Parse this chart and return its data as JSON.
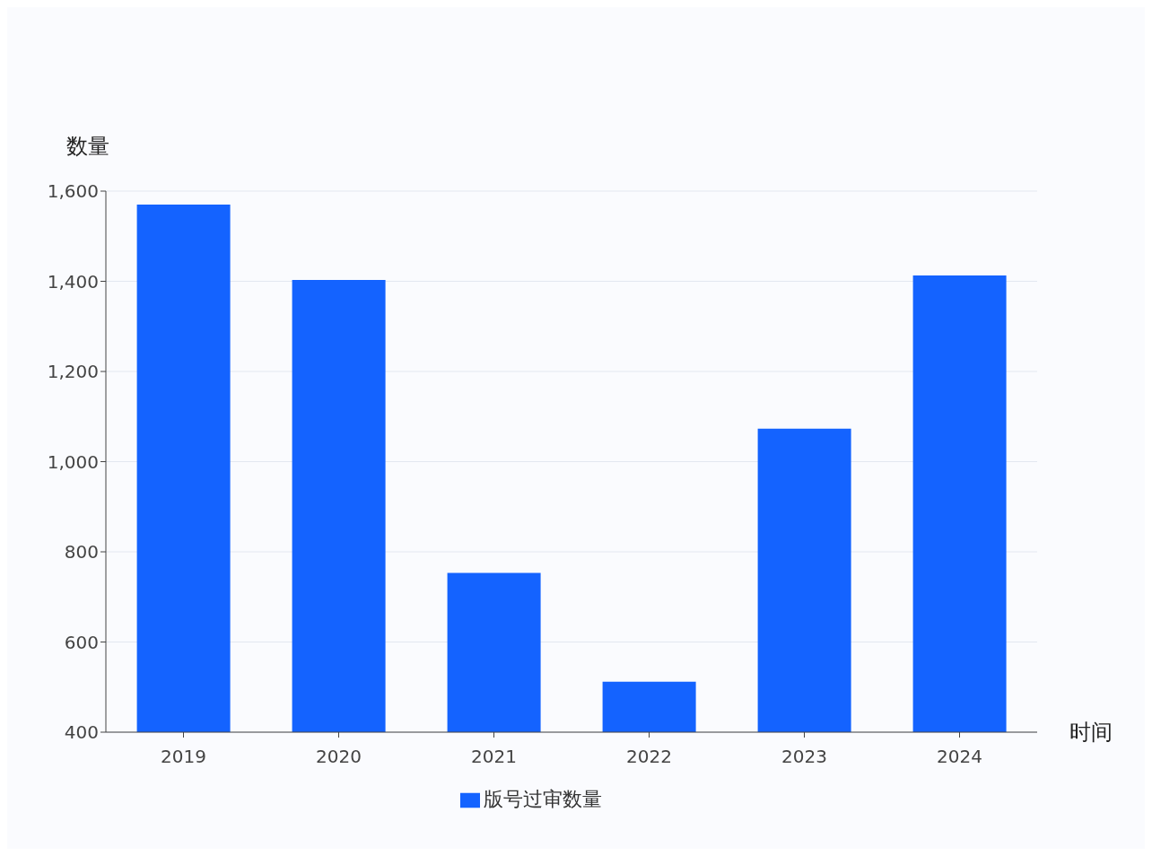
{
  "chart_data": {
    "type": "bar",
    "xlabel": "时间",
    "ylabel": "数量",
    "categories": [
      "2019",
      "2020",
      "2021",
      "2022",
      "2023",
      "2024"
    ],
    "series": [
      {
        "name": "版号过审数量",
        "color": "#1463ff",
        "values": [
          1570,
          1403,
          753,
          512,
          1073,
          1413
        ]
      }
    ],
    "ylim": [
      400,
      1600
    ],
    "yticks": [
      {
        "value": 400,
        "label": "400"
      },
      {
        "value": 600,
        "label": "600"
      },
      {
        "value": 800,
        "label": "800"
      },
      {
        "value": 1000,
        "label": "1,000"
      },
      {
        "value": 1200,
        "label": "1,200"
      },
      {
        "value": 1400,
        "label": "1,400"
      },
      {
        "value": 1600,
        "label": "1,600"
      }
    ],
    "grid": "y",
    "legend": "bottom"
  }
}
